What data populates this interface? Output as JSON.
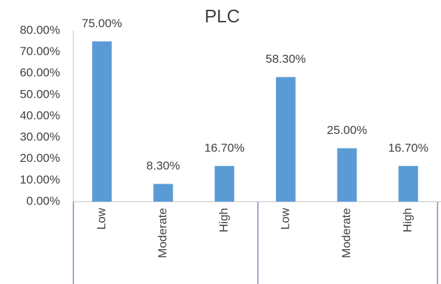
{
  "chart_data": {
    "type": "bar",
    "title": "PLC",
    "categories": [
      "Low",
      "Moderate",
      "High",
      "Low",
      "Moderate",
      "High"
    ],
    "values": [
      75,
      8.3,
      16.7,
      58.3,
      25,
      16.7
    ],
    "value_labels": [
      "75.00%",
      "8.30%",
      "16.70%",
      "58.30%",
      "25.00%",
      "16.70%"
    ],
    "color": "#5b9bd5",
    "ylim": [
      0,
      80
    ],
    "yticks": [
      {
        "value": 0,
        "label": "0.00%"
      },
      {
        "value": 10,
        "label": "10.00%"
      },
      {
        "value": 20,
        "label": "20.00%"
      },
      {
        "value": 30,
        "label": "30.00%"
      },
      {
        "value": 40,
        "label": "40.00%"
      },
      {
        "value": 50,
        "label": "50.00%"
      },
      {
        "value": 60,
        "label": "60.00%"
      },
      {
        "value": 70,
        "label": "70.00%"
      },
      {
        "value": 80,
        "label": "80.00%"
      }
    ],
    "grid": false
  }
}
